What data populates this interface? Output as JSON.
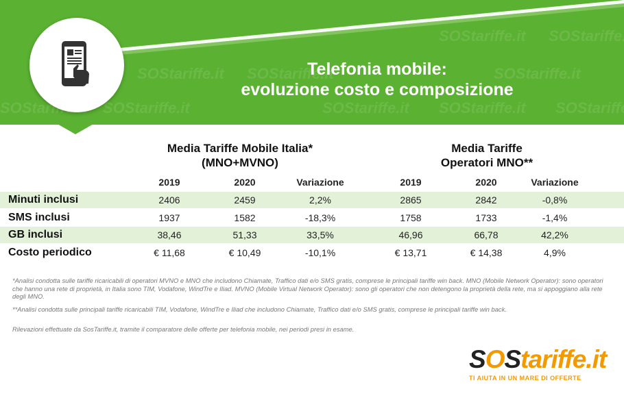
{
  "header": {
    "title_line1": "Telefonia mobile:",
    "title_line2": "evoluzione costo e composizione",
    "icon": "phone-touch-icon",
    "watermark": "SOStariffe.it",
    "brand_color": "#5bb132"
  },
  "table": {
    "group1": {
      "line1": "Media Tariffe Mobile Italia*",
      "line2": "(MNO+MVNO)"
    },
    "group2": {
      "line1": "Media Tariffe",
      "line2": "Operatori MNO**"
    },
    "columns": [
      "2019",
      "2020",
      "Variazione",
      "2019",
      "2020",
      "Variazione"
    ],
    "rows": [
      {
        "label": "Minuti inclusi",
        "values": [
          "2406",
          "2459",
          "2,2%",
          "2865",
          "2842",
          "-0,8%"
        ]
      },
      {
        "label": "SMS inclusi",
        "values": [
          "1937",
          "1582",
          "-18,3%",
          "1758",
          "1733",
          "-1,4%"
        ]
      },
      {
        "label": "GB inclusi",
        "values": [
          "38,46",
          "51,33",
          "33,5%",
          "46,96",
          "66,78",
          "42,2%"
        ]
      },
      {
        "label": "Costo periodico",
        "values": [
          "€ 11,68",
          "€ 10,49",
          "-10,1%",
          "€ 13,71",
          "€ 14,38",
          "4,9%"
        ]
      }
    ],
    "shade_color": "#e2f1d8"
  },
  "notes": {
    "note1": "*Analisi condotta sulle tariffe ricaricabili di operatori MVNO e MNO che includono Chiamate, Traffico dati e/o SMS gratis, comprese le principali tariffe win back. MNO (Mobile Network Operator): sono operatori che hanno una rete di proprietà, in Italia sono TIM, Vodafone, WindTre e Iliad. MVNO (Mobile Virtual Network Operator): sono gli operatori che non detengono la proprietà della rete, ma si appoggiano alla rete degli MNO.",
    "note2": "**Analisi condotta sulle principali tariffe ricaricabili TIM, Vodafone, WindTre e Iliad che includono Chiamate, Traffico dati e/o SMS gratis, comprese le principali tariffe win back.",
    "note3": "Rilevazioni effettuate da SosTariffe.it, tramite il comparatore delle offerte per telefonia mobile, nei periodi presi in esame."
  },
  "logo": {
    "part1": "S",
    "part2": "O",
    "part3": "S",
    "part4": "tariffe",
    "part5": ".it",
    "tagline": "TI AIUTA IN UN MARE DI OFFERTE",
    "accent": "#f29a00"
  }
}
